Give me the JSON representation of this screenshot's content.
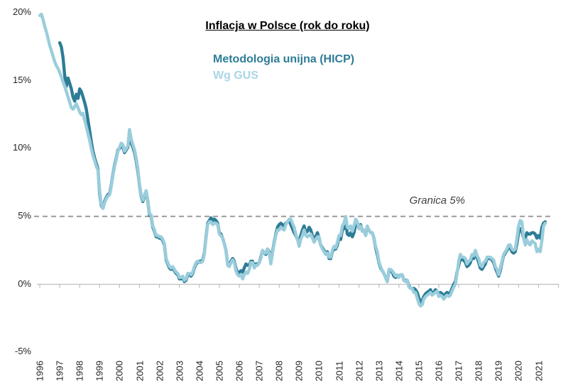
{
  "chart_data": {
    "type": "line",
    "title": "Inflacja w Polsce (rok do roku)",
    "annotation": "Granica 5%",
    "threshold_value": 5,
    "threshold_color": "#a6a6a6",
    "axis_color": "#bfbfbf",
    "text_color": "#262626",
    "frequency": "monthly",
    "x_start": "1996-01",
    "x_end": "2021-05",
    "ylim": [
      -5,
      20
    ],
    "grid": "off",
    "legend_position": "top-center",
    "y_axis": {
      "labels": [
        "20%",
        "15%",
        "10%",
        "5%",
        "0%",
        "-5%"
      ],
      "values": [
        20,
        15,
        10,
        5,
        0,
        -5
      ]
    },
    "x_axis": {
      "labels": [
        "1996",
        "1997",
        "1998",
        "1999",
        "2000",
        "2001",
        "2002",
        "2003",
        "2004",
        "2005",
        "2006",
        "2007",
        "2008",
        "2009",
        "2010",
        "2011",
        "2012",
        "2013",
        "2014",
        "2015",
        "2016",
        "2017",
        "2018",
        "2019",
        "2020",
        "2021"
      ]
    },
    "series": [
      {
        "name": "Metodologia unijna (HICP)",
        "color": "#2d7c96",
        "legend_color": "#2d7c96",
        "start_year": 1997,
        "monthly_values": [
          17.8,
          17.5,
          16.7,
          15.4,
          14.6,
          15.2,
          14.8,
          14.4,
          13.8,
          13.5,
          14.0,
          13.7,
          14.4,
          14.2,
          13.8,
          13.4,
          12.9,
          12.1,
          11.3,
          10.5,
          9.8,
          9.3,
          8.9,
          8.5,
          6.7,
          5.8,
          5.6,
          6.1,
          6.4,
          6.6,
          6.7,
          7.3,
          8.1,
          8.8,
          9.3,
          9.9,
          10.0,
          10.2,
          10.1,
          9.7,
          9.9,
          10.1,
          11.0,
          10.4,
          10.1,
          9.7,
          9.1,
          8.3,
          7.3,
          6.5,
          6.1,
          6.5,
          6.8,
          6.1,
          5.1,
          5.0,
          4.2,
          3.9,
          3.5,
          3.5,
          3.4,
          3.4,
          3.2,
          2.9,
          1.8,
          1.5,
          1.2,
          1.1,
          1.2,
          1.0,
          0.8,
          0.7,
          0.4,
          0.4,
          0.5,
          0.2,
          0.3,
          0.7,
          0.7,
          0.6,
          0.8,
          1.2,
          1.5,
          1.6,
          1.7,
          1.7,
          1.8,
          2.3,
          3.5,
          4.5,
          4.7,
          4.9,
          4.7,
          4.8,
          4.7,
          4.5,
          3.8,
          3.7,
          3.4,
          3.0,
          2.5,
          1.5,
          1.4,
          1.7,
          1.9,
          1.7,
          1.2,
          0.8,
          0.9,
          1.0,
          0.9,
          1.2,
          1.5,
          1.4,
          1.4,
          1.7,
          1.7,
          1.3,
          1.5,
          1.5,
          1.6,
          2.0,
          2.5,
          2.3,
          2.2,
          2.6,
          2.4,
          1.7,
          2.4,
          3.1,
          3.7,
          4.2,
          4.4,
          4.5,
          4.4,
          4.3,
          4.5,
          4.6,
          4.7,
          4.4,
          4.1,
          3.8,
          3.6,
          3.3,
          3.2,
          3.6,
          4.0,
          4.3,
          3.8,
          3.9,
          4.2,
          4.0,
          3.6,
          3.3,
          3.5,
          3.8,
          3.4,
          2.9,
          2.7,
          2.5,
          2.2,
          2.4,
          1.9,
          1.9,
          2.4,
          2.6,
          2.6,
          2.9,
          3.5,
          3.3,
          4.0,
          4.1,
          4.6,
          3.7,
          3.6,
          3.8,
          3.5,
          3.8,
          4.4,
          4.5,
          4.1,
          4.4,
          3.9,
          4.0,
          3.6,
          4.2,
          4.0,
          3.8,
          3.8,
          3.4,
          2.7,
          2.2,
          1.6,
          1.2,
          1.0,
          0.8,
          0.5,
          0.2,
          1.0,
          1.0,
          0.9,
          0.6,
          0.5,
          0.6,
          0.6,
          0.7,
          0.7,
          0.3,
          0.3,
          0.3,
          -0.1,
          -0.3,
          -0.3,
          -0.3,
          -0.4,
          -0.6,
          -1.0,
          -1.3,
          -1.2,
          -0.9,
          -0.7,
          -0.6,
          -0.5,
          -0.4,
          -0.7,
          -0.6,
          -0.4,
          -0.5,
          -0.7,
          -0.6,
          -0.7,
          -0.9,
          -0.7,
          -0.6,
          -0.7,
          -0.6,
          -0.3,
          0.0,
          0.2,
          0.9,
          1.4,
          1.9,
          1.8,
          1.8,
          1.6,
          1.3,
          1.4,
          1.6,
          2.0,
          1.9,
          2.3,
          2.0,
          1.6,
          1.2,
          1.1,
          1.3,
          1.5,
          1.9,
          1.9,
          1.9,
          1.8,
          1.6,
          1.2,
          0.9,
          0.6,
          1.0,
          1.6,
          2.1,
          2.3,
          2.5,
          2.7,
          2.7,
          2.4,
          2.3,
          2.4,
          3.0,
          3.8,
          4.1,
          3.9,
          3.4,
          3.4,
          3.8,
          3.7,
          3.7,
          3.8,
          3.8,
          3.7,
          3.4,
          3.6,
          3.4,
          4.2,
          4.5,
          4.6
        ]
      },
      {
        "name": "Wg GUS",
        "color": "#9acddc",
        "legend_color": "#a9d6e4",
        "start_year": 1996,
        "monthly_values": [
          19.8,
          19.9,
          19.5,
          19.0,
          18.6,
          18.1,
          17.6,
          17.2,
          16.8,
          16.4,
          16.1,
          15.9,
          15.6,
          15.3,
          14.9,
          14.6,
          14.2,
          13.8,
          13.4,
          13.0,
          12.9,
          13.1,
          13.3,
          13.0,
          12.7,
          12.5,
          12.6,
          12.1,
          11.6,
          11.1,
          10.6,
          10.0,
          9.5,
          9.1,
          8.7,
          8.4,
          6.9,
          5.9,
          5.6,
          6.0,
          6.3,
          6.5,
          6.6,
          7.2,
          8.0,
          8.7,
          9.2,
          9.8,
          10.1,
          10.4,
          10.3,
          9.8,
          10.0,
          10.2,
          11.4,
          10.7,
          10.3,
          9.9,
          9.3,
          8.5,
          7.4,
          6.6,
          6.2,
          6.6,
          6.9,
          6.2,
          5.2,
          5.1,
          4.3,
          4.0,
          3.6,
          3.6,
          3.5,
          3.5,
          3.3,
          3.0,
          1.9,
          1.6,
          1.3,
          1.2,
          1.3,
          1.1,
          0.9,
          0.8,
          0.5,
          0.5,
          0.6,
          0.3,
          0.4,
          0.8,
          0.8,
          0.7,
          0.9,
          1.3,
          1.6,
          1.7,
          1.6,
          1.6,
          1.7,
          2.2,
          3.4,
          4.4,
          4.6,
          4.6,
          4.4,
          4.5,
          4.5,
          4.4,
          3.7,
          3.6,
          3.4,
          3.0,
          2.5,
          1.4,
          1.3,
          1.6,
          1.8,
          1.6,
          1.0,
          0.7,
          0.6,
          0.7,
          0.4,
          0.7,
          0.9,
          0.8,
          1.1,
          1.6,
          1.6,
          1.2,
          1.4,
          1.4,
          1.6,
          1.9,
          2.5,
          2.3,
          2.3,
          2.6,
          2.3,
          1.5,
          2.3,
          3.0,
          3.6,
          4.0,
          4.0,
          4.2,
          4.1,
          4.0,
          4.4,
          4.6,
          4.8,
          4.8,
          4.5,
          4.2,
          3.7,
          3.3,
          2.8,
          3.3,
          3.6,
          4.0,
          3.6,
          3.5,
          3.6,
          3.7,
          3.4,
          3.1,
          3.3,
          3.5,
          3.5,
          2.9,
          2.6,
          2.4,
          2.2,
          2.3,
          2.0,
          2.0,
          2.5,
          2.8,
          2.7,
          3.1,
          3.6,
          3.6,
          4.3,
          4.5,
          5.0,
          4.2,
          4.1,
          4.3,
          3.9,
          4.3,
          4.8,
          4.6,
          4.1,
          4.3,
          3.9,
          4.0,
          3.6,
          4.3,
          4.0,
          3.8,
          3.8,
          3.4,
          2.8,
          2.4,
          1.7,
          1.3,
          1.0,
          0.8,
          0.5,
          0.2,
          1.1,
          1.1,
          1.0,
          0.8,
          0.6,
          0.7,
          0.5,
          0.7,
          0.7,
          0.3,
          0.2,
          0.3,
          -0.2,
          -0.3,
          -0.3,
          -0.6,
          -0.6,
          -1.0,
          -1.4,
          -1.6,
          -1.5,
          -1.1,
          -0.9,
          -0.8,
          -0.7,
          -0.6,
          -0.8,
          -0.7,
          -0.6,
          -0.5,
          -0.9,
          -0.8,
          -0.9,
          -1.1,
          -0.9,
          -0.8,
          -0.9,
          -0.8,
          -0.5,
          -0.2,
          0.0,
          0.8,
          1.7,
          2.2,
          2.0,
          2.0,
          1.9,
          1.5,
          1.7,
          1.8,
          2.2,
          2.1,
          2.5,
          2.1,
          1.9,
          1.4,
          1.3,
          1.6,
          1.7,
          2.0,
          2.0,
          2.0,
          1.9,
          1.8,
          1.3,
          1.1,
          0.7,
          1.2,
          1.7,
          2.2,
          2.4,
          2.6,
          2.9,
          2.9,
          2.6,
          2.5,
          2.6,
          3.4,
          4.3,
          4.7,
          4.6,
          3.4,
          2.9,
          3.3,
          3.0,
          2.9,
          3.2,
          3.1,
          3.0,
          2.4,
          2.6,
          2.4,
          3.2,
          4.3,
          4.5
        ]
      }
    ]
  }
}
